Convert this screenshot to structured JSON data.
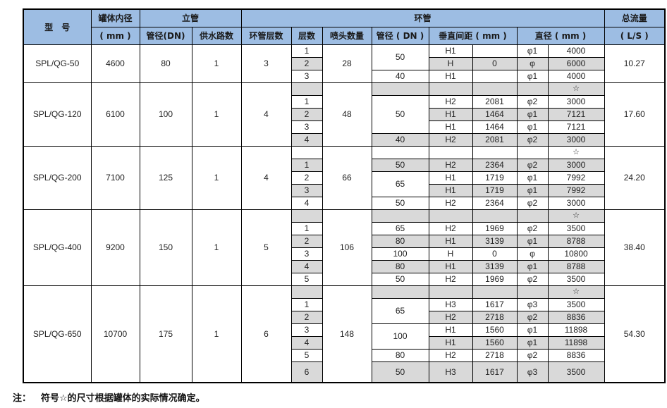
{
  "header": {
    "model": "型　号",
    "inner_diameter": "罐体内径",
    "inner_diameter_unit": "( mm )",
    "riser": "立管",
    "riser_dn": "管径(DN)",
    "supply_count": "供水路数",
    "ring": "环管",
    "ring_layers": "环管层数",
    "layer": "层数",
    "nozzle_count": "喷头数量",
    "ring_dn": "管径 ( DN )",
    "vertical_spacing": "垂直间距 ( mm )",
    "diameter": "直径 ( mm )",
    "total_flow": "总流量",
    "total_flow_unit": "( L/S )"
  },
  "groups": [
    {
      "model": "SPL/QG-50",
      "inner_diameter": "4600",
      "riser_dn": "80",
      "supply": "1",
      "ring_layers": "3",
      "nozzles": "28",
      "flow": "10.27",
      "rows": [
        {
          "layer": "1",
          "dn": "50",
          "dn_span": 2,
          "h": "H1",
          "hv": "",
          "phi": "φ1",
          "d": "4000",
          "shade": false
        },
        {
          "layer": "2",
          "h": "H",
          "hv": "0",
          "phi": "φ",
          "d": "6000",
          "shade": true
        },
        {
          "layer": "3",
          "dn": "40",
          "dn_span": 1,
          "h": "H1",
          "hv": "",
          "phi": "φ1",
          "d": "4000",
          "shade": false
        }
      ]
    },
    {
      "model": "SPL/QG-120",
      "inner_diameter": "6100",
      "riser_dn": "100",
      "supply": "1",
      "ring_layers": "4",
      "nozzles": "48",
      "flow": "17.60",
      "rows": [
        {
          "layer": "",
          "dn": "",
          "dn_span": 1,
          "h": "",
          "hv": "",
          "phi": "",
          "d": "☆",
          "shade": true
        },
        {
          "layer": "1",
          "dn": "50",
          "dn_span": 3,
          "h": "H2",
          "hv": "2081",
          "phi": "φ2",
          "d": "3000",
          "shade": false
        },
        {
          "layer": "2",
          "h": "H1",
          "hv": "1464",
          "phi": "φ1",
          "d": "7121",
          "shade": true
        },
        {
          "layer": "3",
          "h": "H1",
          "hv": "1464",
          "phi": "φ1",
          "d": "7121",
          "shade": false
        },
        {
          "layer": "4",
          "dn": "40",
          "dn_span": 1,
          "h": "H2",
          "hv": "2081",
          "phi": "φ2",
          "d": "3000",
          "shade": true
        }
      ]
    },
    {
      "model": "SPL/QG-200",
      "inner_diameter": "7100",
      "riser_dn": "125",
      "supply": "1",
      "ring_layers": "4",
      "nozzles": "66",
      "flow": "24.20",
      "rows": [
        {
          "layer": "",
          "dn": "",
          "dn_span": 1,
          "h": "",
          "hv": "",
          "phi": "",
          "d": "☆",
          "shade": false
        },
        {
          "layer": "1",
          "dn": "50",
          "dn_span": 1,
          "h": "H2",
          "hv": "2364",
          "phi": "φ2",
          "d": "3000",
          "shade": true
        },
        {
          "layer": "2",
          "dn": "65",
          "dn_span": 2,
          "h": "H1",
          "hv": "1719",
          "phi": "φ1",
          "d": "7992",
          "shade": false
        },
        {
          "layer": "3",
          "h": "H1",
          "hv": "1719",
          "phi": "φ1",
          "d": "7992",
          "shade": true
        },
        {
          "layer": "4",
          "dn": "50",
          "dn_span": 1,
          "h": "H2",
          "hv": "2364",
          "phi": "φ2",
          "d": "3000",
          "shade": false
        }
      ]
    },
    {
      "model": "SPL/QG-400",
      "inner_diameter": "9200",
      "riser_dn": "150",
      "supply": "1",
      "ring_layers": "5",
      "nozzles": "106",
      "flow": "38.40",
      "rows": [
        {
          "layer": "",
          "dn": "",
          "dn_span": 1,
          "h": "",
          "hv": "",
          "phi": "",
          "d": "☆",
          "shade": true
        },
        {
          "layer": "1",
          "dn": "65",
          "dn_span": 1,
          "h": "H2",
          "hv": "1969",
          "phi": "φ2",
          "d": "3500",
          "shade": false
        },
        {
          "layer": "2",
          "dn": "80",
          "dn_span": 1,
          "h": "H1",
          "hv": "3139",
          "phi": "φ1",
          "d": "8788",
          "shade": true
        },
        {
          "layer": "3",
          "dn": "100",
          "dn_span": 1,
          "h": "H",
          "hv": "0",
          "phi": "φ",
          "d": "10800",
          "shade": false
        },
        {
          "layer": "4",
          "dn": "80",
          "dn_span": 1,
          "h": "H1",
          "hv": "3139",
          "phi": "φ1",
          "d": "8788",
          "shade": true
        },
        {
          "layer": "5",
          "dn": "50",
          "dn_span": 1,
          "h": "H2",
          "hv": "1969",
          "phi": "φ2",
          "d": "3500",
          "shade": false
        }
      ]
    },
    {
      "model": "SPL/QG-650",
      "inner_diameter": "10700",
      "riser_dn": "175",
      "supply": "1",
      "ring_layers": "6",
      "nozzles": "148",
      "flow": "54.30",
      "rows": [
        {
          "layer": "",
          "dn": "",
          "dn_span": 1,
          "h": "",
          "hv": "",
          "phi": "",
          "d": "☆",
          "shade": true
        },
        {
          "layer": "1",
          "dn": "65",
          "dn_span": 2,
          "h": "H3",
          "hv": "1617",
          "phi": "φ3",
          "d": "3500",
          "shade": false
        },
        {
          "layer": "2",
          "h": "H2",
          "hv": "2718",
          "phi": "φ2",
          "d": "8836",
          "shade": true
        },
        {
          "layer": "3",
          "dn": "100",
          "dn_span": 2,
          "h": "H1",
          "hv": "1560",
          "phi": "φ1",
          "d": "11898",
          "shade": false
        },
        {
          "layer": "4",
          "h": "H1",
          "hv": "1560",
          "phi": "φ1",
          "d": "11898",
          "shade": true
        },
        {
          "layer": "5",
          "dn": "80",
          "dn_span": 1,
          "h": "H2",
          "hv": "2718",
          "phi": "φ2",
          "d": "8836",
          "shade": false
        },
        {
          "layer": "6",
          "dn": "50",
          "dn_span": 1,
          "h": "H3",
          "hv": "1617",
          "phi": "φ3",
          "d": "3500",
          "shade": true,
          "tall": true
        }
      ]
    }
  ],
  "note": {
    "label": "注：",
    "text": "符号☆的尺寸根据罐体的实际情况确定。"
  }
}
